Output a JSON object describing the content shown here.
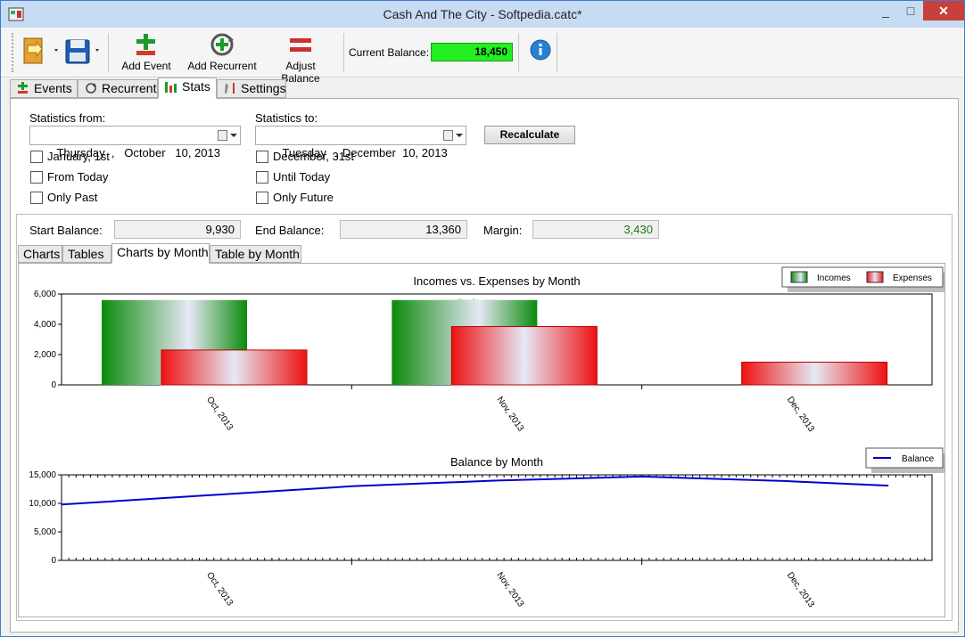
{
  "window": {
    "title": "Cash And The City - Softpedia.catc*",
    "min": "_",
    "max": "□",
    "close": "✕"
  },
  "toolbar": {
    "add_event": "Add Event",
    "add_recurrent": "Add Recurrent",
    "adjust_balance": "Adjust Balance",
    "current_balance_label": "Current Balance:",
    "current_balance_value": "18,450"
  },
  "tabs": [
    {
      "label": "Events",
      "icon": "plus-minus-icon"
    },
    {
      "label": "Recurrent",
      "icon": "refresh-icon"
    },
    {
      "label": "Stats",
      "icon": "bar-chart-icon"
    },
    {
      "label": "Settings",
      "icon": "tools-icon"
    }
  ],
  "stats": {
    "from_label": "Statistics from:",
    "from_date": "Thursday  ,   October   10, 2013",
    "to_label": "Statistics to:",
    "to_date": "Tuesday   , December  10, 2013",
    "recalc": "Recalculate",
    "from_options": [
      "January, 1st",
      "From Today",
      "Only Past"
    ],
    "to_options": [
      "December, 31st",
      "Until Today",
      "Only Future"
    ],
    "start_balance_label": "Start Balance:",
    "start_balance": "9,930",
    "end_balance_label": "End Balance:",
    "end_balance": "13,360",
    "margin_label": "Margin:",
    "margin": "3,430",
    "margin_color": "#1a7a1a"
  },
  "subtabs": [
    "Charts",
    "Tables",
    "Charts by Month",
    "Table by Month"
  ],
  "chart_data": [
    {
      "type": "bar",
      "title": "Incomes vs. Expenses by Month",
      "categories": [
        "Oct, 2013",
        "Nov, 2013",
        "Dec, 2013"
      ],
      "series": [
        {
          "name": "Incomes",
          "values": [
            5600,
            5600,
            0
          ],
          "color": "#0b8a0b"
        },
        {
          "name": "Expenses",
          "values": [
            2300,
            3850,
            1500
          ],
          "color": "#ee1111"
        }
      ],
      "ylim": [
        0,
        6000
      ],
      "yticks": [
        "0",
        "2,000",
        "4,000",
        "6,000"
      ],
      "legend": "top-right",
      "watermark": "www.softpedia.com"
    },
    {
      "type": "line",
      "title": "Balance by Month",
      "categories": [
        "Oct, 2013",
        "Nov, 2013",
        "Dec, 2013"
      ],
      "series": [
        {
          "name": "Balance",
          "x": [
            0,
            0.5,
            1.0,
            1.5,
            2.0,
            2.5,
            2.85
          ],
          "values": [
            9800,
            11400,
            13000,
            14000,
            14700,
            13900,
            13100
          ],
          "color": "#0000cc"
        }
      ],
      "ylim": [
        0,
        15000
      ],
      "yticks": [
        "0",
        "5,000",
        "10,000",
        "15,000"
      ],
      "legend": "top-right"
    }
  ]
}
